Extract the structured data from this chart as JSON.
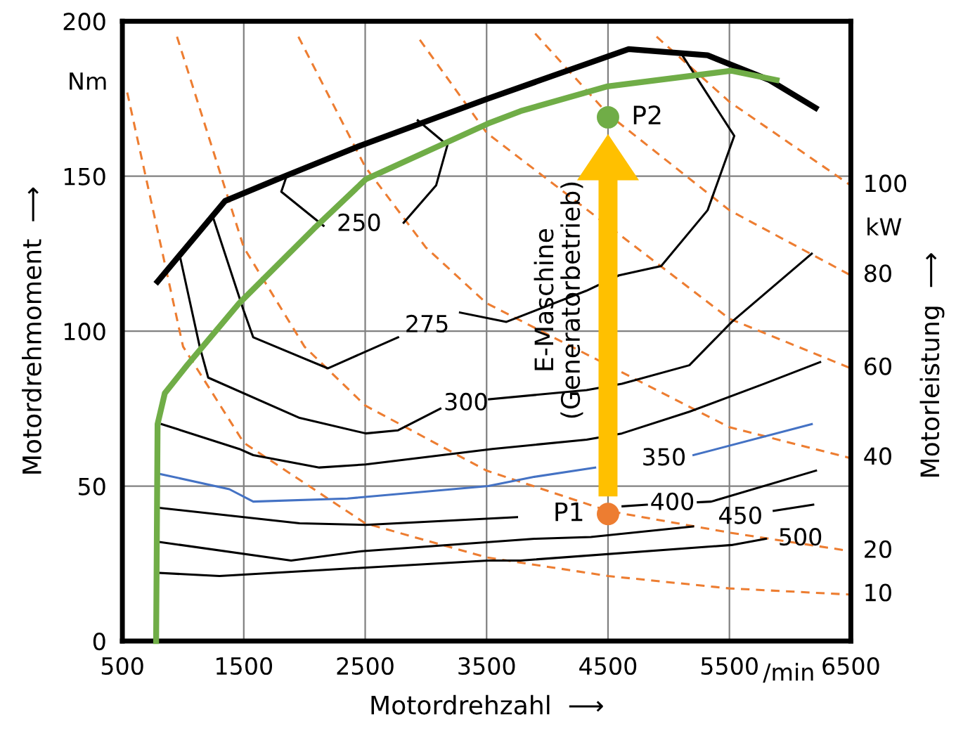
{
  "chart_data": {
    "type": "line",
    "xlabel": "Motordrehzahl  ⟶",
    "ylabel": "Motordrehmoment  ⟶",
    "y2label": "Motorleistung  ⟶",
    "xlim": [
      500,
      6500
    ],
    "ylim": [
      0,
      200
    ],
    "xticks": [
      500,
      1500,
      2500,
      3500,
      4500,
      5500,
      6500
    ],
    "yticks": [
      0,
      50,
      100,
      150,
      200
    ],
    "grid": true,
    "legend": false,
    "series": [
      {
        "name": "10",
        "color": "#ed7d31",
        "line_style": "dashed",
        "x": [
          540,
          1000,
          1500,
          2500,
          3500,
          4500,
          5500,
          6500
        ],
        "values": [
          177,
          95,
          64,
          38,
          27,
          21,
          17,
          15
        ]
      },
      {
        "name": "20",
        "color": "#ed7d31",
        "line_style": "dashed",
        "x": [
          950,
          1500,
          2000,
          2500,
          3500,
          4500,
          5500,
          6500
        ],
        "values": [
          195,
          127,
          95,
          76,
          55,
          42,
          35,
          29
        ]
      },
      {
        "name": "40",
        "color": "#ed7d31",
        "line_style": "dashed",
        "x": [
          1950,
          2500,
          3000,
          3500,
          5500,
          6500
        ],
        "values": [
          195,
          153,
          127,
          109,
          69,
          59
        ]
      },
      {
        "name": "60",
        "color": "#ed7d31",
        "line_style": "dashed",
        "x": [
          2950,
          3500,
          5500,
          6500
        ],
        "values": [
          194,
          164,
          104,
          88
        ]
      },
      {
        "name": "80",
        "color": "#ed7d31",
        "line_style": "dashed",
        "x": [
          3900,
          4500,
          5500,
          6500
        ],
        "values": [
          196,
          170,
          139,
          118
        ]
      },
      {
        "name": "100",
        "color": "#ed7d31",
        "line_style": "dashed",
        "x": [
          4900,
          5500,
          6500
        ],
        "values": [
          195,
          174,
          147
        ]
      },
      {
        "name": "250",
        "color": "#000000",
        "x": [
          1844,
          1809,
          2157,
          2450,
          2817,
          3084,
          3177,
          2933
        ],
        "values": [
          149,
          145,
          134,
          null,
          135,
          147,
          160,
          168
        ]
      },
      {
        "name": "275",
        "color": "#000000",
        "x": [
          1253,
          1496,
          1578,
          2192,
          2771,
          3010,
          3281,
          3663,
          4320,
          4590,
          4938,
          5320,
          5540,
          5112
        ],
        "values": [
          136,
          107,
          98,
          88,
          98,
          null,
          106,
          103,
          113,
          118,
          121,
          139,
          163,
          189
        ]
      },
      {
        "name": "300",
        "color": "#000000",
        "x": [
          975,
          1137,
          1207,
          1960,
          2505,
          2771,
          3119,
          3330,
          3520,
          4324,
          4614,
          5170,
          5520,
          6178
        ],
        "values": [
          124,
          95,
          85,
          72,
          67,
          68,
          75,
          null,
          78,
          81,
          83,
          89,
          103,
          125
        ]
      },
      {
        "color": "#000000",
        "x": [
          824,
          1462,
          1578,
          2122,
          2505,
          3548,
          4324,
          4614,
          5170,
          5784,
          6247
        ],
        "values": [
          70,
          62,
          60,
          56,
          57,
          62,
          65,
          67,
          74,
          83,
          90
        ]
      },
      {
        "name": "350",
        "color": "#4472c4",
        "x": [
          801,
          1381,
          1578,
          2354,
          3513,
          3895,
          4394,
          4960,
          5204,
          6178
        ],
        "values": [
          54,
          49,
          45,
          46,
          50,
          53,
          56,
          null,
          60,
          70
        ]
      },
      {
        "name": "400",
        "color": "#000000",
        "x": [
          801,
          1960,
          2505,
          3750,
          4000,
          4620,
          4820,
          5030,
          5240,
          5350,
          6213
        ],
        "values": [
          43,
          38,
          37.5,
          40,
          null,
          43.5,
          44,
          null,
          44.8,
          45,
          55
        ]
      },
      {
        "name": "450",
        "color": "#000000",
        "x": [
          801,
          1890,
          2470,
          3895,
          4359,
          5200,
          5590,
          5865,
          6190
        ],
        "values": [
          32,
          26,
          29,
          33,
          33.6,
          37,
          null,
          42,
          44
        ]
      },
      {
        "name": "500",
        "color": "#000000",
        "x": [
          801,
          1300,
          3513,
          3779,
          5517,
          5800
        ],
        "values": [
          22,
          21,
          26,
          26,
          31,
          33
        ]
      },
      {
        "color": "#000000",
        "x": [
          790,
          1346,
          1775,
          2470,
          3510,
          4670,
          5320,
          5830,
          6210
        ],
        "values": [
          116,
          142,
          149,
          160,
          175,
          191,
          189,
          181,
          172
        ]
      },
      {
        "color": "#70ad47",
        "x": [
          778,
          785,
          790,
          850,
          1033,
          1462,
          2076,
          2505,
          3513,
          3780,
          4498,
          5517,
          5888
        ],
        "values": [
          0,
          40,
          70,
          80,
          89,
          109,
          133,
          149,
          167,
          171,
          179,
          184,
          181
        ]
      },
      {
        "type": "scatter",
        "color": "#ed7d31",
        "x": [
          4500
        ],
        "values": [
          41
        ]
      },
      {
        "type": "scatter",
        "color": "#70ad47",
        "x": [
          4500
        ],
        "values": [
          169
        ]
      }
    ],
    "annotations": [
      {
        "text": "P1",
        "x": 4500,
        "y": 41
      },
      {
        "text": "P2",
        "x": 4500,
        "y": 169
      },
      "E-Maschine\n(Generatorbetrieb)",
      "Nm",
      "kW",
      "/min"
    ]
  }
}
